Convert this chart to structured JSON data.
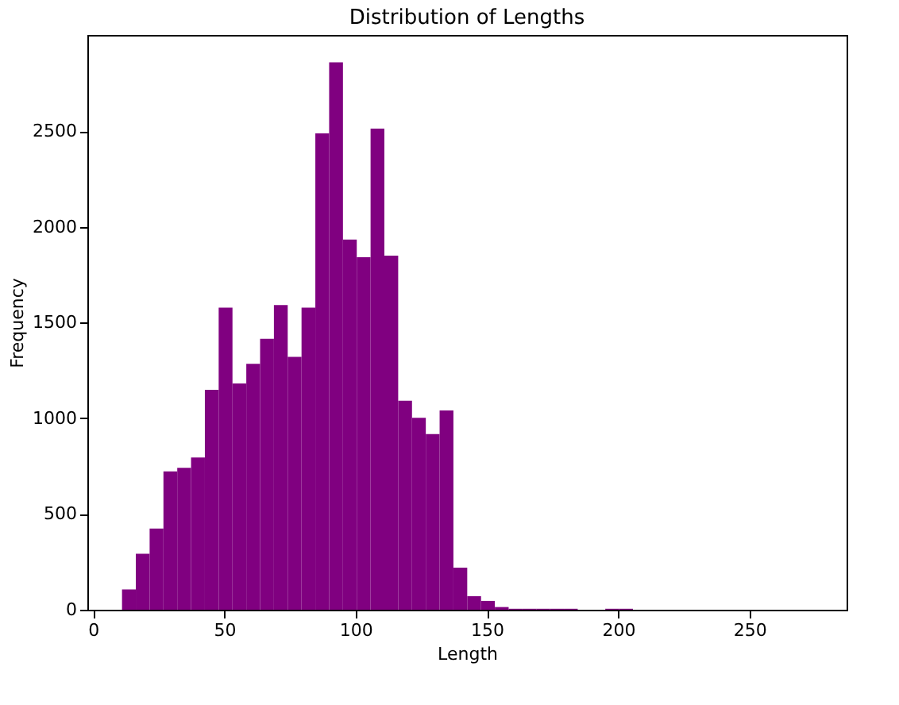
{
  "chart_data": {
    "type": "histogram",
    "title": "Distribution of Lengths",
    "xlabel": "Length",
    "ylabel": "Frequency",
    "bins": [
      11,
      16.26,
      21.52,
      26.78,
      32.04,
      37.3,
      42.56,
      47.82,
      53.08,
      58.34,
      63.6,
      68.86,
      74.12,
      79.38,
      84.64,
      89.9,
      95.16,
      100.42,
      105.68,
      110.94,
      116.2,
      121.46,
      126.72,
      131.98,
      137.24,
      142.5,
      147.76,
      153.02,
      158.28,
      163.54,
      168.8,
      174.06,
      179.32,
      184.58,
      189.84,
      195.1,
      200.36,
      205.62,
      210.88,
      216.14,
      221.4,
      226.66,
      231.92,
      237.18,
      242.44,
      247.7,
      252.96,
      258.22,
      263.48,
      268.74,
      274
    ],
    "values": [
      106,
      293,
      424,
      723,
      742,
      796,
      1149,
      1579,
      1183,
      1285,
      1416,
      1592,
      1321,
      1579,
      2489,
      2861,
      1935,
      1842,
      2514,
      1851,
      1092,
      1003,
      918,
      1041,
      220,
      71,
      46,
      14,
      5,
      5,
      5,
      5,
      5,
      0,
      0,
      5,
      5,
      0,
      0,
      0,
      0,
      0,
      0,
      0,
      0,
      0,
      0,
      0,
      0,
      0
    ],
    "color": "#800080",
    "xlim": [
      -2.2,
      287
    ],
    "ylim": [
      0,
      3004
    ],
    "xticks": [
      0,
      50,
      100,
      150,
      200,
      250
    ],
    "yticks": [
      0,
      500,
      1000,
      1500,
      2000,
      2500
    ],
    "grid": false
  }
}
